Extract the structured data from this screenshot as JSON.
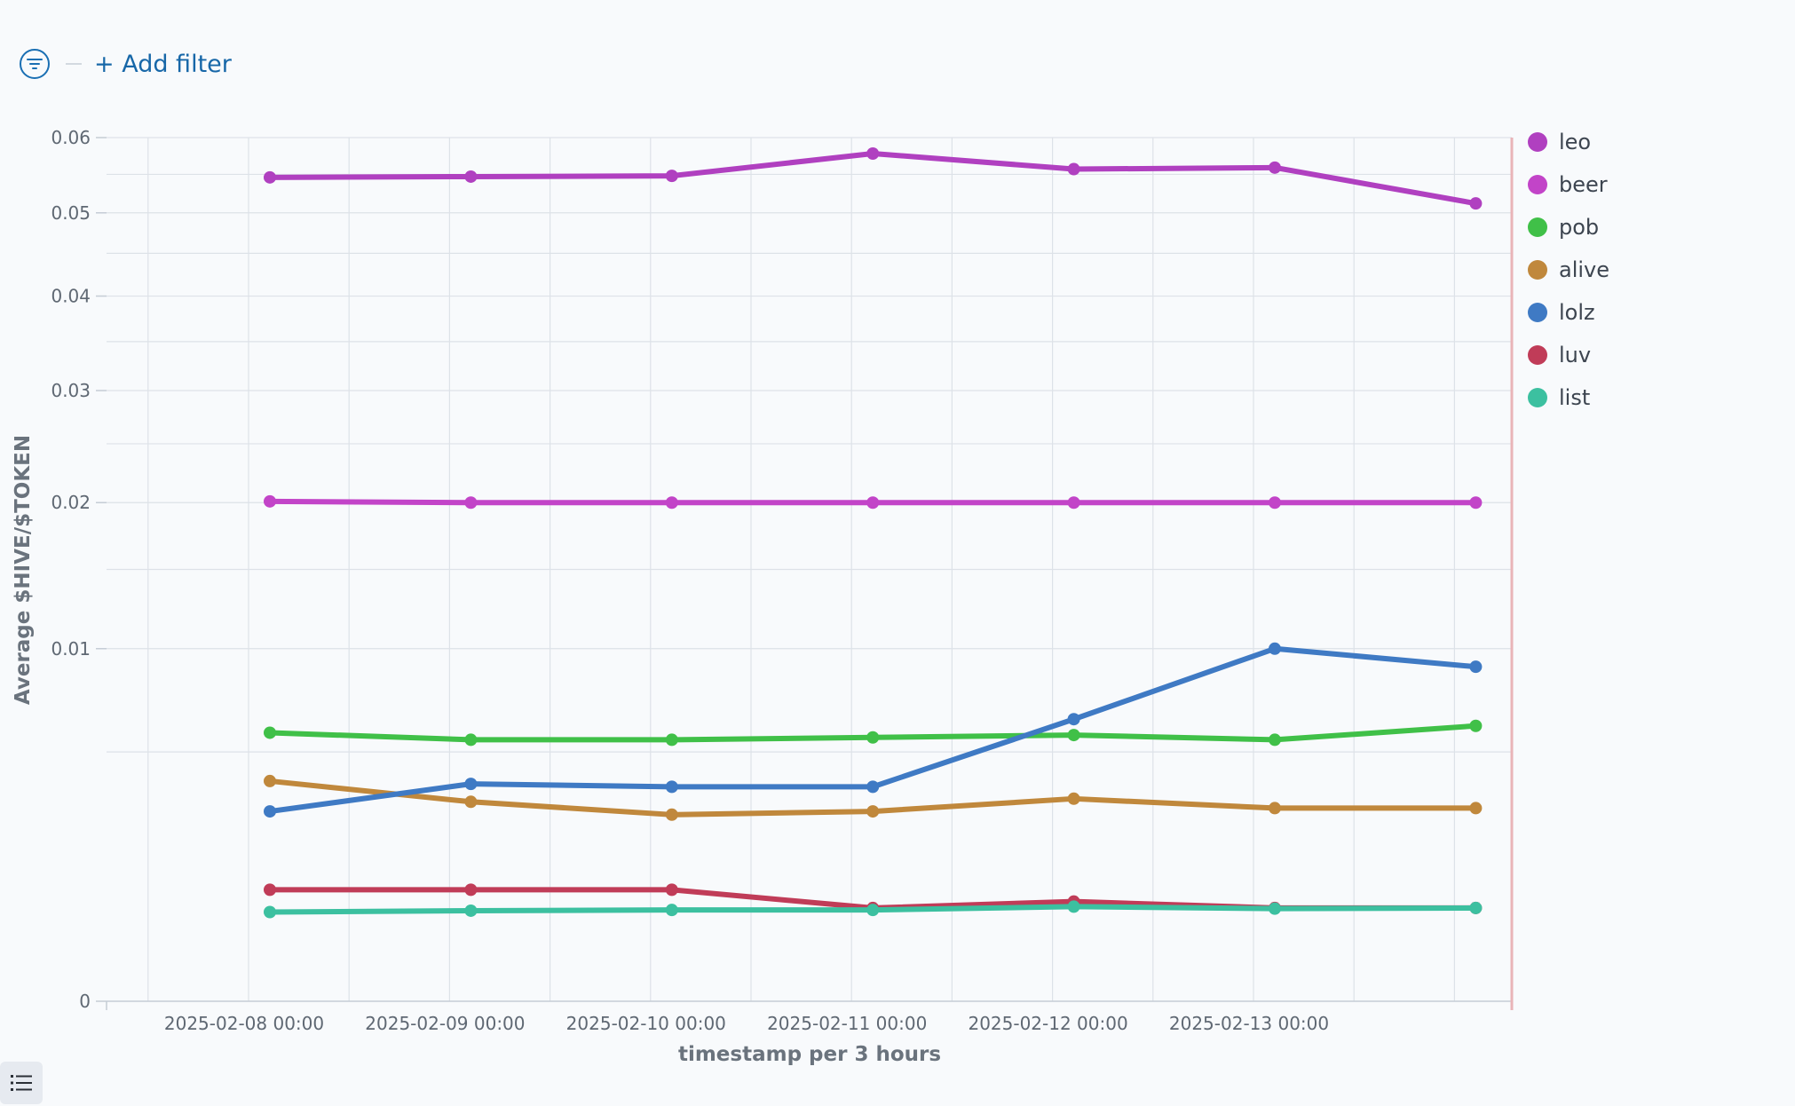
{
  "toolbar": {
    "filter_icon": "filter-icon",
    "add_filter_label": "+ Add filter"
  },
  "legend_toggle_icon": "list-icon",
  "chart_data": {
    "type": "line",
    "title": "",
    "xlabel": "timestamp per 3 hours",
    "ylabel": "Average $HIVE/$TOKEN",
    "y_scale": "sqrt",
    "ylim": [
      0,
      0.06
    ],
    "y_ticks": [
      0,
      0.01,
      0.02,
      0.03,
      0.04,
      0.05,
      0.06
    ],
    "y_tick_labels": [
      "0",
      "0.01",
      "0.02",
      "0.03",
      "0.04",
      "0.05",
      "0.06"
    ],
    "x_tick_labels": [
      "2025-02-08 00:00",
      "2025-02-09 00:00",
      "2025-02-10 00:00",
      "2025-02-11 00:00",
      "2025-02-12 00:00",
      "2025-02-13 00:00"
    ],
    "x": [
      "2025-02-08 00:00",
      "2025-02-09 00:00",
      "2025-02-10 00:00",
      "2025-02-11 00:00",
      "2025-02-12 00:00",
      "2025-02-13 00:00",
      "2025-02-14 00:00"
    ],
    "grid": true,
    "legend_position": "right",
    "series": [
      {
        "name": "leo",
        "color": "#b040c0",
        "values": [
          0.0546,
          0.0547,
          0.0548,
          0.0578,
          0.0557,
          0.0559,
          0.0512
        ]
      },
      {
        "name": "beer",
        "color": "#c244c8",
        "values": [
          0.0201,
          0.02,
          0.02,
          0.02,
          0.02,
          0.02,
          0.02
        ]
      },
      {
        "name": "pob",
        "color": "#40c048",
        "values": [
          0.0058,
          0.0055,
          0.0055,
          0.0056,
          0.0057,
          0.0055,
          0.0061
        ]
      },
      {
        "name": "alive",
        "color": "#c0883c",
        "values": [
          0.0039,
          0.0032,
          0.0028,
          0.0029,
          0.0033,
          0.003,
          0.003
        ]
      },
      {
        "name": "lolz",
        "color": "#3f7ac4",
        "values": [
          0.0029,
          0.0038,
          0.0037,
          0.0037,
          0.0064,
          0.01,
          0.009
        ]
      },
      {
        "name": "luv",
        "color": "#c03c58",
        "values": [
          0.001,
          0.001,
          0.001,
          0.0007,
          0.0008,
          0.0007,
          0.0007
        ]
      },
      {
        "name": "list",
        "color": "#3cc0a0",
        "values": [
          0.00064,
          0.00066,
          0.00067,
          0.00067,
          0.00072,
          0.00069,
          0.0007
        ]
      }
    ]
  }
}
